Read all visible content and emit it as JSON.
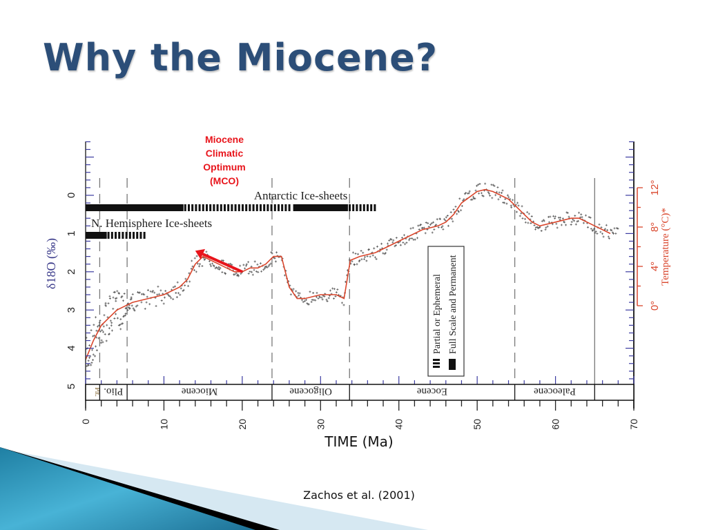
{
  "slide": {
    "title": "Why the Miocene?",
    "credit": "Zachos et al. (2001)",
    "colors": {
      "title": "#2c4e78",
      "accent_red": "#e8141b",
      "curve": "#d9452b",
      "axis_blue": "#3a3aa0",
      "scatter": "#555555",
      "deco_blue": "#2e93b5"
    }
  },
  "chart_data": {
    "type": "scatter",
    "title": "",
    "xlabel": "TIME (Ma)",
    "ylabel": "δ18O (‰)",
    "y2label": "Temperature (°C)*",
    "xlim": [
      0,
      70
    ],
    "ylim": [
      5,
      -1.4
    ],
    "y_inverted": true,
    "grid": false,
    "xticks": [
      "0",
      "10",
      "20",
      "30",
      "40",
      "50",
      "60",
      "70"
    ],
    "yticks": [
      "0",
      "1",
      "2",
      "3",
      "4",
      "5"
    ],
    "y2ticks": [
      {
        "label": "0°",
        "value": 0
      },
      {
        "label": "4°",
        "value": 4
      },
      {
        "label": "8°",
        "value": 8
      },
      {
        "label": "12°",
        "value": 12
      }
    ],
    "y2_mapping": {
      "temp_0_at_d18O": 2.88,
      "temp_12_at_d18O": -0.2
    },
    "series": [
      {
        "name": "Smoothed δ18O curve",
        "color": "#d9452b",
        "points": [
          [
            0,
            4.3
          ],
          [
            1,
            3.8
          ],
          [
            2,
            3.4
          ],
          [
            3,
            3.2
          ],
          [
            4,
            3.0
          ],
          [
            5,
            2.9
          ],
          [
            6,
            2.8
          ],
          [
            8,
            2.7
          ],
          [
            10,
            2.6
          ],
          [
            12,
            2.4
          ],
          [
            13,
            2.2
          ],
          [
            14,
            1.8
          ],
          [
            15,
            1.6
          ],
          [
            16,
            1.7
          ],
          [
            17,
            1.8
          ],
          [
            18,
            1.9
          ],
          [
            19,
            2.0
          ],
          [
            20,
            2.0
          ],
          [
            21,
            1.9
          ],
          [
            22,
            1.9
          ],
          [
            23,
            1.8
          ],
          [
            24,
            1.6
          ],
          [
            25,
            1.6
          ],
          [
            26,
            2.4
          ],
          [
            27,
            2.7
          ],
          [
            28,
            2.7
          ],
          [
            30,
            2.6
          ],
          [
            32,
            2.6
          ],
          [
            33,
            2.7
          ],
          [
            33.8,
            1.7
          ],
          [
            35,
            1.6
          ],
          [
            37,
            1.5
          ],
          [
            39,
            1.3
          ],
          [
            41,
            1.1
          ],
          [
            43,
            0.9
          ],
          [
            45,
            0.8
          ],
          [
            46,
            0.7
          ],
          [
            47,
            0.5
          ],
          [
            48,
            0.2
          ],
          [
            50,
            -0.1
          ],
          [
            51,
            -0.15
          ],
          [
            52,
            -0.1
          ],
          [
            54,
            0.1
          ],
          [
            55,
            0.3
          ],
          [
            56,
            0.5
          ],
          [
            57,
            0.7
          ],
          [
            58,
            0.8
          ],
          [
            60,
            0.7
          ],
          [
            62,
            0.6
          ],
          [
            63,
            0.6
          ],
          [
            65,
            0.8
          ],
          [
            67,
            1.0
          ]
        ]
      },
      {
        "name": "Benthic δ18O measurements",
        "color": "#555555",
        "derived_from": "scatter around smoothed curve"
      }
    ],
    "epochs": [
      {
        "name": "Plt.",
        "start": 0,
        "end": 1.8
      },
      {
        "name": "Plio.",
        "start": 1.8,
        "end": 5.3
      },
      {
        "name": "Miocene",
        "start": 5.3,
        "end": 23.8
      },
      {
        "name": "Oligocene",
        "start": 23.8,
        "end": 33.7
      },
      {
        "name": "Eocene",
        "start": 33.7,
        "end": 54.8
      },
      {
        "name": "Paleocene",
        "start": 54.8,
        "end": 65
      },
      {
        "name": "",
        "start": 65,
        "end": 70
      }
    ],
    "boundaries": [
      {
        "age": 1.8,
        "style": "dashed"
      },
      {
        "age": 5.3,
        "style": "dashed"
      },
      {
        "age": 23.8,
        "style": "dashed"
      },
      {
        "age": 33.7,
        "style": "dashed"
      },
      {
        "age": 54.8,
        "style": "dashed"
      },
      {
        "age": 65,
        "style": "solid"
      }
    ],
    "ice_sheets": [
      {
        "name": "Antarctic Ice-sheets",
        "segments": [
          {
            "start": 0,
            "end": 12.5,
            "type": "full"
          },
          {
            "start": 12.5,
            "end": 26.5,
            "type": "partial"
          },
          {
            "start": 26.5,
            "end": 33.5,
            "type": "full"
          },
          {
            "start": 33.5,
            "end": 37,
            "type": "partial"
          }
        ]
      },
      {
        "name": "N. Hemisphere Ice-sheets",
        "segments": [
          {
            "start": 0,
            "end": 2.7,
            "type": "full"
          },
          {
            "start": 2.7,
            "end": 7.8,
            "type": "partial"
          }
        ]
      }
    ],
    "legend": {
      "placement": "center-right",
      "items": [
        {
          "label": "Partial or Ephemeral",
          "type": "partial"
        },
        {
          "label": "Full Scale and Permanent",
          "type": "full"
        }
      ]
    },
    "annotation": {
      "lines": [
        "Miocene",
        "Climatic",
        "Optimum",
        "(MCO)"
      ],
      "arrow_from": [
        20,
        2.0
      ],
      "arrow_to": [
        14,
        1.45
      ]
    }
  }
}
